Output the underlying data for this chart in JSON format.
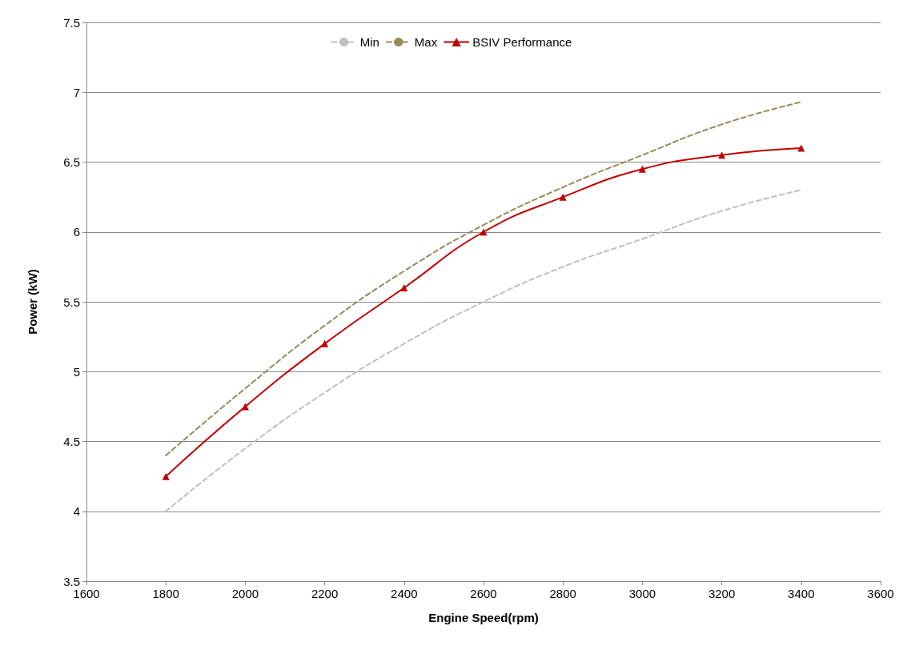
{
  "chart_data": {
    "type": "line",
    "xlabel": "Engine Speed(rpm)",
    "ylabel": "Power (kW)",
    "x": [
      1800,
      2000,
      2200,
      2400,
      2600,
      2800,
      3000,
      3200,
      3400
    ],
    "series": [
      {
        "name": "Min",
        "color": "#c0c0c0",
        "line_style": "dashed",
        "marker": "none",
        "values": [
          4.0,
          4.45,
          4.85,
          5.2,
          5.5,
          5.75,
          5.95,
          6.15,
          6.3
        ]
      },
      {
        "name": "Max",
        "color": "#998a5a",
        "line_style": "dashed",
        "marker": "none",
        "values": [
          4.4,
          4.88,
          5.33,
          5.72,
          6.05,
          6.32,
          6.55,
          6.77,
          6.93
        ]
      },
      {
        "name": "BSIV Performance",
        "color": "#c00000",
        "line_style": "solid",
        "marker": "triangle",
        "values": [
          4.25,
          4.75,
          5.2,
          5.6,
          6.0,
          6.25,
          6.45,
          6.55,
          6.6
        ]
      }
    ],
    "xlim": [
      1600,
      3600
    ],
    "xticks": [
      1600,
      1800,
      2000,
      2200,
      2400,
      2600,
      2800,
      3000,
      3200,
      3400,
      3600
    ],
    "ylim": [
      3.5,
      7.5
    ],
    "yticks": [
      3.5,
      4,
      4.5,
      5,
      5.5,
      6,
      6.5,
      7,
      7.5
    ],
    "grid": "y",
    "legend": "top"
  }
}
